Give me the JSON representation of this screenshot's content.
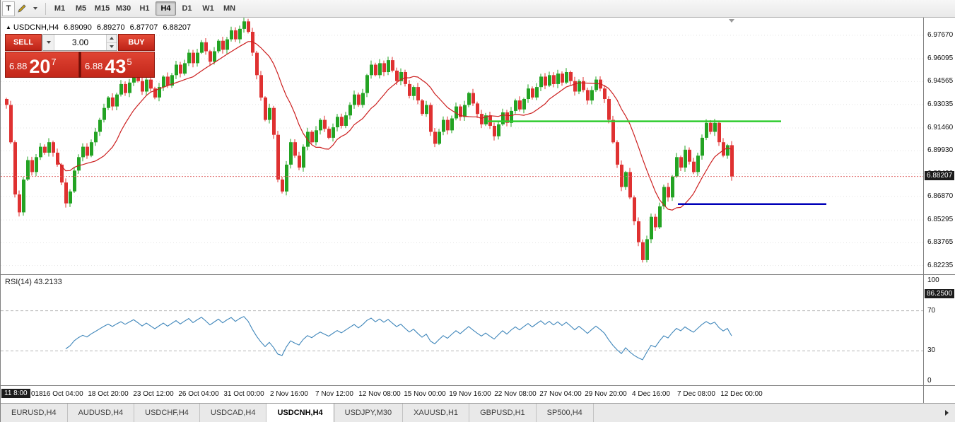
{
  "toolbar": {
    "t_label": "T",
    "timeframes": [
      "M1",
      "M5",
      "M15",
      "M30",
      "H1",
      "H4",
      "D1",
      "W1",
      "MN"
    ],
    "active_timeframe": "H4"
  },
  "chart": {
    "title": {
      "toggle_arrow": "▲",
      "symbol_tf": "USDCNH,H4",
      "open": "6.89090",
      "high": "6.89270",
      "low": "6.87707",
      "close": "6.88207"
    },
    "trade_panel": {
      "sell_label": "SELL",
      "buy_label": "BUY",
      "volume": "3.00",
      "sell_price_prefix": "6.88",
      "sell_price_big": "20",
      "sell_price_sup": "7",
      "buy_price_prefix": "6.88",
      "buy_price_big": "43",
      "buy_price_sup": "5"
    },
    "price_scale": [
      "6.97670",
      "6.96095",
      "6.94565",
      "6.93035",
      "6.91460",
      "6.89930",
      "6.88400",
      "6.86870",
      "6.85295",
      "6.83765",
      "6.82235"
    ],
    "price_badge": "6.88207"
  },
  "rsi": {
    "label": "RSI(14) 43.2133",
    "scale": [
      "100",
      "70",
      "30",
      "0"
    ],
    "badge": "86.2500",
    "badge_value": 86.25
  },
  "time_axis": {
    "badge": "11 8:00",
    "partial_label": "018",
    "labels": [
      "16 Oct 04:00",
      "18 Oct 20:00",
      "23 Oct 12:00",
      "26 Oct 04:00",
      "31 Oct 00:00",
      "2 Nov 16:00",
      "7 Nov 12:00",
      "12 Nov 08:00",
      "15 Nov 00:00",
      "19 Nov 16:00",
      "22 Nov 08:00",
      "27 Nov 04:00",
      "29 Nov 20:00",
      "4 Dec 16:00",
      "7 Dec 08:00",
      "12 Dec 00:00"
    ]
  },
  "tabs": {
    "items": [
      "EURUSD,H4",
      "AUDUSD,H4",
      "USDCHF,H4",
      "USDCAD,H4",
      "USDCNH,H4",
      "USDJPY,M30",
      "XAUUSD,H1",
      "GBPUSD,H1",
      "SP500,H4"
    ],
    "active": "USDCNH,H4"
  },
  "colors": {
    "candle_up": "#23a323",
    "candle_down": "#df3131",
    "ma_line": "#cc1f1f",
    "rsi_line": "#3f86ba",
    "level_green": "#2ecc2e",
    "level_blue": "#0000b8",
    "grid": "#e3e3e3",
    "rsi_guide": "#b5b5b5",
    "badge_bg": "#1c1c1c",
    "panel_red": "#d8342c",
    "current_price_line": "#e06666"
  },
  "chart_data": {
    "type": "candlestick",
    "symbol": "USDCNH",
    "timeframe": "H4",
    "price_max": 6.9885,
    "price_min": 6.8165,
    "current_price": 6.88207,
    "ma_period": 13,
    "rsi_period": 14,
    "rsi_range": [
      0,
      100
    ],
    "rsi_guides": [
      70,
      30
    ],
    "levels": [
      {
        "name": "resistance-line",
        "color_key": "level_green",
        "price": 6.919,
        "x_from": 0.527,
        "x_to": 0.846
      },
      {
        "name": "support-line",
        "color_key": "level_blue",
        "price": 6.8635,
        "x_from": 0.734,
        "x_to": 0.895
      }
    ],
    "closes": [
      6.93,
      6.905,
      6.87,
      6.858,
      6.88,
      6.893,
      6.885,
      6.895,
      6.902,
      6.898,
      6.905,
      6.898,
      6.89,
      6.878,
      6.864,
      6.872,
      6.886,
      6.895,
      6.902,
      6.896,
      6.905,
      6.912,
      6.92,
      6.928,
      6.935,
      6.929,
      6.937,
      6.944,
      6.938,
      6.945,
      6.952,
      6.946,
      6.939,
      6.947,
      6.941,
      6.935,
      6.942,
      6.949,
      6.943,
      6.95,
      6.957,
      6.951,
      6.958,
      6.965,
      6.958,
      6.965,
      6.972,
      6.966,
      6.959,
      6.966,
      6.973,
      6.967,
      6.974,
      6.98,
      6.974,
      6.981,
      6.986,
      6.979,
      6.965,
      6.95,
      6.935,
      6.92,
      6.928,
      6.91,
      6.88,
      6.872,
      6.89,
      6.905,
      6.896,
      6.888,
      6.902,
      6.912,
      6.905,
      6.913,
      6.92,
      6.914,
      6.908,
      6.915,
      6.922,
      6.916,
      6.923,
      6.93,
      6.937,
      6.93,
      6.938,
      6.95,
      6.957,
      6.95,
      6.958,
      6.952,
      6.96,
      6.953,
      6.946,
      6.952,
      6.944,
      6.936,
      6.942,
      6.933,
      6.924,
      6.93,
      6.912,
      6.904,
      6.912,
      6.92,
      6.913,
      6.921,
      6.929,
      6.922,
      6.93,
      6.938,
      6.931,
      6.924,
      6.917,
      6.923,
      6.916,
      6.909,
      6.917,
      6.925,
      6.918,
      6.926,
      6.933,
      6.927,
      6.934,
      6.941,
      6.935,
      6.942,
      6.949,
      6.943,
      6.95,
      6.944,
      6.951,
      6.945,
      6.952,
      6.946,
      6.939,
      6.946,
      6.94,
      6.933,
      6.94,
      6.947,
      6.941,
      6.934,
      6.92,
      6.905,
      6.89,
      6.875,
      6.885,
      6.868,
      6.852,
      6.838,
      6.826,
      6.84,
      6.855,
      6.848,
      6.862,
      6.875,
      6.868,
      6.882,
      6.895,
      6.888,
      6.9,
      6.892,
      6.885,
      6.896,
      6.908,
      6.918,
      6.912,
      6.918,
      6.905,
      6.896,
      6.903,
      6.882
    ]
  }
}
